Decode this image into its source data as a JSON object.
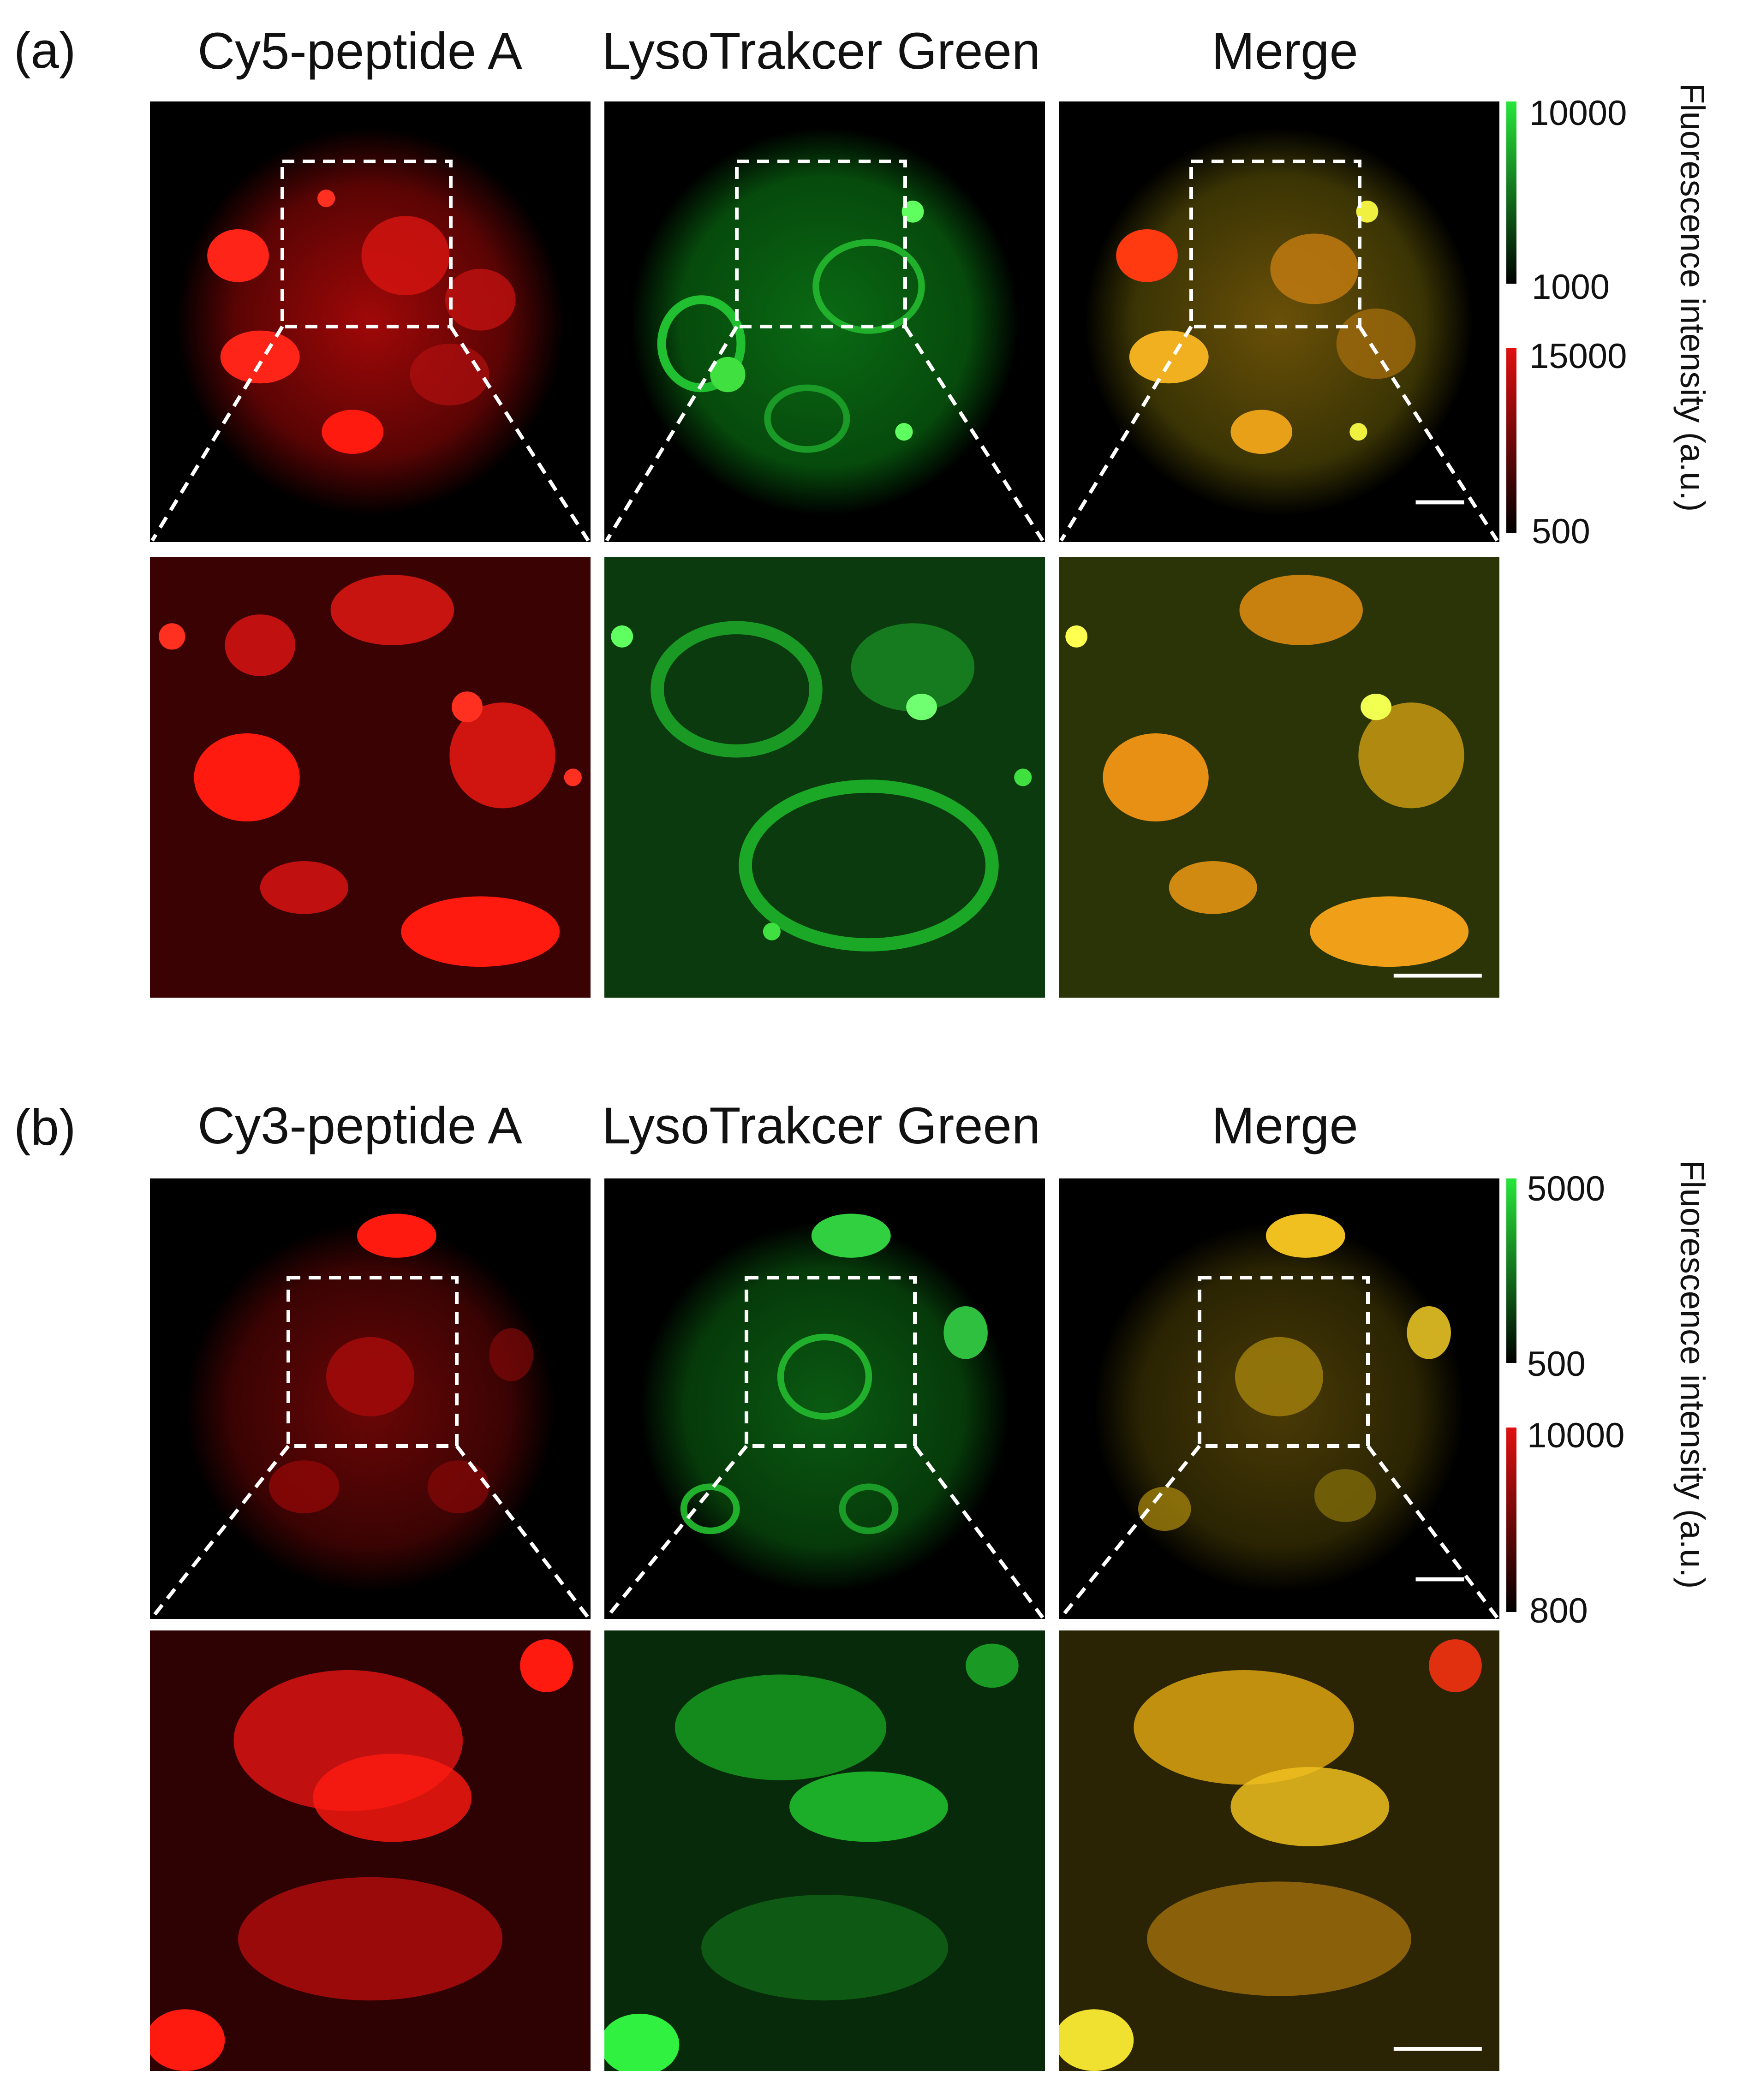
{
  "figure": {
    "panels": [
      {
        "letter": "(a)",
        "columns": [
          "Cy5-peptide A",
          "LysoTrakcer Green",
          "Merge"
        ],
        "colorbars": {
          "green": {
            "max": "10000",
            "min": "1000",
            "color": "#27e63a"
          },
          "red": {
            "max": "15000",
            "min": "500",
            "color": "#e01010"
          }
        },
        "colorbar_title": "Fluorescence intensity (a.u.)"
      },
      {
        "letter": "(b)",
        "columns": [
          "Cy3-peptide A",
          "LysoTrakcer Green",
          "Merge"
        ],
        "colorbars": {
          "green": {
            "max": "5000",
            "min": "500",
            "color": "#27e63a"
          },
          "red": {
            "max": "10000",
            "min": "800",
            "color": "#e01010"
          }
        },
        "colorbar_title": "Fluorescence intensity (a.u.)"
      }
    ],
    "channel_colors": {
      "red": "#ff1a10",
      "green": "#22e030",
      "merge": "#e6a010"
    }
  }
}
